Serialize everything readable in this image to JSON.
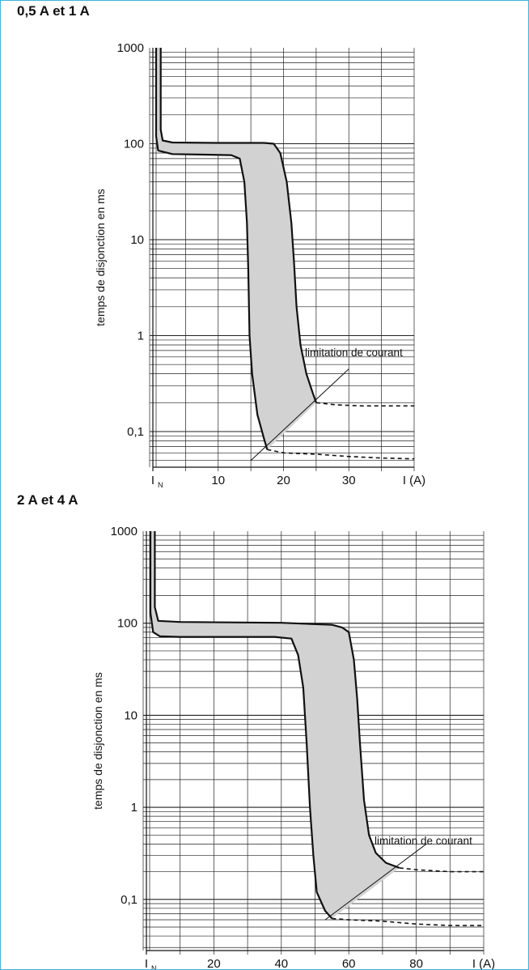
{
  "chart_data": [
    {
      "type": "line",
      "title": "0,5 A et 1 A",
      "xlabel": "I (A)",
      "ylabel": "temps de disjonction en ms",
      "x_ticks": [
        {
          "value": 0,
          "label": "I",
          "sub": "N"
        },
        {
          "value": 10,
          "label": "10"
        },
        {
          "value": 20,
          "label": "20"
        },
        {
          "value": 30,
          "label": "30"
        },
        {
          "value": 40,
          "label": "I (A)"
        }
      ],
      "y_ticks": [
        {
          "value": 1000,
          "label": "1000"
        },
        {
          "value": 100,
          "label": "100"
        },
        {
          "value": 10,
          "label": "10"
        },
        {
          "value": 1,
          "label": "1"
        },
        {
          "value": 0.1,
          "label": "0,1"
        }
      ],
      "xlim": [
        0,
        40
      ],
      "ylim": [
        0.045,
        1000
      ],
      "yscale": "log",
      "grid": true,
      "annotation": "limitation de courant",
      "series": [
        {
          "style": "solid",
          "values": [
            [
              1.2,
              1000
            ],
            [
              1.2,
              140
            ],
            [
              1.5,
              108
            ],
            [
              3,
              103
            ],
            [
              10,
              102
            ],
            [
              17,
              102
            ],
            [
              18.5,
              100
            ],
            [
              19.5,
              80
            ],
            [
              20.5,
              40
            ],
            [
              21.2,
              15
            ],
            [
              21.6,
              6
            ],
            [
              22,
              2
            ],
            [
              22.6,
              0.8
            ],
            [
              23.5,
              0.4
            ],
            [
              24.5,
              0.25
            ],
            [
              25,
              0.2
            ]
          ]
        },
        {
          "style": "solid",
          "values": [
            [
              0.5,
              1000
            ],
            [
              0.5,
              120
            ],
            [
              0.8,
              85
            ],
            [
              3,
              78
            ],
            [
              8,
              77
            ],
            [
              12,
              76
            ],
            [
              13.3,
              70
            ],
            [
              14,
              40
            ],
            [
              14.4,
              15
            ],
            [
              14.6,
              5
            ],
            [
              14.8,
              1
            ],
            [
              15.2,
              0.4
            ],
            [
              16,
              0.15
            ],
            [
              17,
              0.085
            ],
            [
              17.5,
              0.065
            ]
          ]
        },
        {
          "style": "dashed",
          "values": [
            [
              25,
              0.2
            ],
            [
              28,
              0.19
            ],
            [
              32,
              0.185
            ],
            [
              40,
              0.185
            ]
          ]
        },
        {
          "style": "dashed",
          "values": [
            [
              17.5,
              0.065
            ],
            [
              20,
              0.06
            ],
            [
              25,
              0.058
            ],
            [
              30,
              0.055
            ],
            [
              35,
              0.053
            ],
            [
              40,
              0.052
            ]
          ]
        },
        {
          "style": "thin",
          "values": [
            [
              15,
              0.05
            ],
            [
              30,
              0.45
            ]
          ]
        }
      ]
    },
    {
      "type": "line",
      "title": "2 A et 4 A",
      "xlabel": "I (A)",
      "ylabel": "temps de disjonction en ms",
      "x_ticks": [
        {
          "value": 0,
          "label": "I",
          "sub": "N"
        },
        {
          "value": 20,
          "label": "20"
        },
        {
          "value": 40,
          "label": "40"
        },
        {
          "value": 60,
          "label": "60"
        },
        {
          "value": 80,
          "label": "80"
        },
        {
          "value": 100,
          "label": "I (A)"
        }
      ],
      "y_ticks": [
        {
          "value": 1000,
          "label": "1000"
        },
        {
          "value": 100,
          "label": "100"
        },
        {
          "value": 10,
          "label": "10"
        },
        {
          "value": 1,
          "label": "1"
        },
        {
          "value": 0.1,
          "label": "0,1"
        }
      ],
      "xlim": [
        0,
        100
      ],
      "ylim": [
        0.045,
        1000
      ],
      "yscale": "log",
      "grid": true,
      "annotation": "limitation de courant",
      "series": [
        {
          "style": "solid",
          "values": [
            [
              2.5,
              1000
            ],
            [
              2.5,
              150
            ],
            [
              3.5,
              106
            ],
            [
              10,
              103
            ],
            [
              40,
              101
            ],
            [
              55,
              96
            ],
            [
              58,
              90
            ],
            [
              60,
              80
            ],
            [
              61.5,
              40
            ],
            [
              62.5,
              15
            ],
            [
              63.3,
              5
            ],
            [
              64.5,
              1.2
            ],
            [
              66,
              0.5
            ],
            [
              68,
              0.32
            ],
            [
              71,
              0.25
            ],
            [
              75,
              0.22
            ]
          ]
        },
        {
          "style": "solid",
          "values": [
            [
              1.2,
              1000
            ],
            [
              1.2,
              130
            ],
            [
              2,
              80
            ],
            [
              4,
              72
            ],
            [
              10,
              71
            ],
            [
              38,
              71
            ],
            [
              43,
              68
            ],
            [
              45,
              45
            ],
            [
              46.5,
              20
            ],
            [
              47.5,
              5
            ],
            [
              48.5,
              1
            ],
            [
              49.5,
              0.3
            ],
            [
              50.5,
              0.12
            ],
            [
              53,
              0.075
            ],
            [
              55,
              0.062
            ]
          ]
        },
        {
          "style": "dashed",
          "values": [
            [
              75,
              0.22
            ],
            [
              80,
              0.21
            ],
            [
              90,
              0.2
            ],
            [
              100,
              0.2
            ]
          ]
        },
        {
          "style": "dashed",
          "values": [
            [
              55,
              0.062
            ],
            [
              60,
              0.06
            ],
            [
              70,
              0.058
            ],
            [
              80,
              0.054
            ],
            [
              90,
              0.052
            ],
            [
              100,
              0.052
            ]
          ]
        },
        {
          "style": "thin",
          "values": [
            [
              53,
              0.06
            ],
            [
              83,
              0.4
            ]
          ]
        }
      ]
    }
  ]
}
